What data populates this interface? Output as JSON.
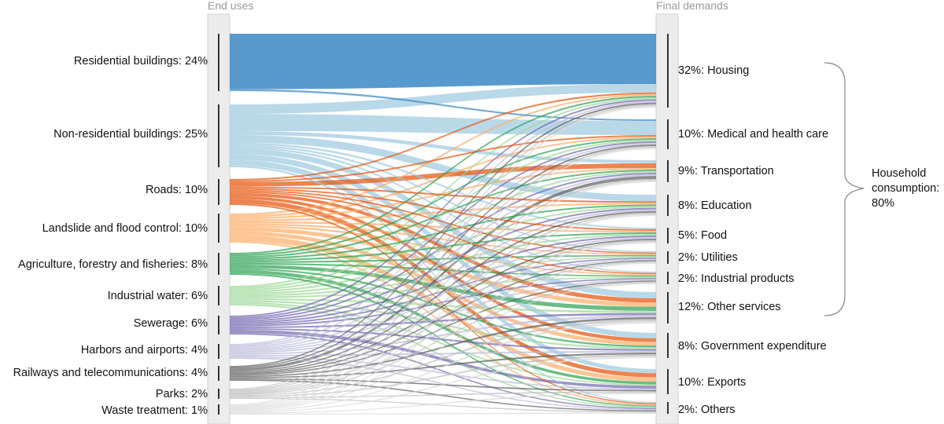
{
  "diagram": {
    "left_title": "End uses",
    "right_title": "Final demands",
    "bracket_label": [
      "Household",
      "consumption:",
      "80%"
    ],
    "left_nodes": [
      {
        "label": "Residential buildings: 24%",
        "color": "#3b88c4"
      },
      {
        "label": "Non-residential buildings: 25%",
        "color": "#9ecae1"
      },
      {
        "label": "Roads: 10%",
        "color": "#e6550d"
      },
      {
        "label": "Landslide and flood control: 10%",
        "color": "#fdae6b"
      },
      {
        "label": "Agriculture, forestry and fisheries: 8%",
        "color": "#31a354"
      },
      {
        "label": "Industrial water: 6%",
        "color": "#a1d99b"
      },
      {
        "label": "Sewerage: 6%",
        "color": "#756bb1"
      },
      {
        "label": "Harbors and airports: 4%",
        "color": "#bcbddc"
      },
      {
        "label": "Railways and telecommunications: 4%",
        "color": "#636363"
      },
      {
        "label": "Parks: 2%",
        "color": "#bdbdbd"
      },
      {
        "label": "Waste treatment: 1%",
        "color": "#d9d9d9"
      }
    ],
    "right_nodes": [
      {
        "label": "32%: Housing"
      },
      {
        "label": "10%: Medical and health care"
      },
      {
        "label": "9%: Transportation"
      },
      {
        "label": "8%: Education"
      },
      {
        "label": "5%: Food"
      },
      {
        "label": "2%: Utilities"
      },
      {
        "label": "2%: Industrial products"
      },
      {
        "label": "12%: Other services"
      },
      {
        "label": "8%: Government expenditure"
      },
      {
        "label": "10%: Exports"
      },
      {
        "label": "2%: Others"
      }
    ]
  }
}
